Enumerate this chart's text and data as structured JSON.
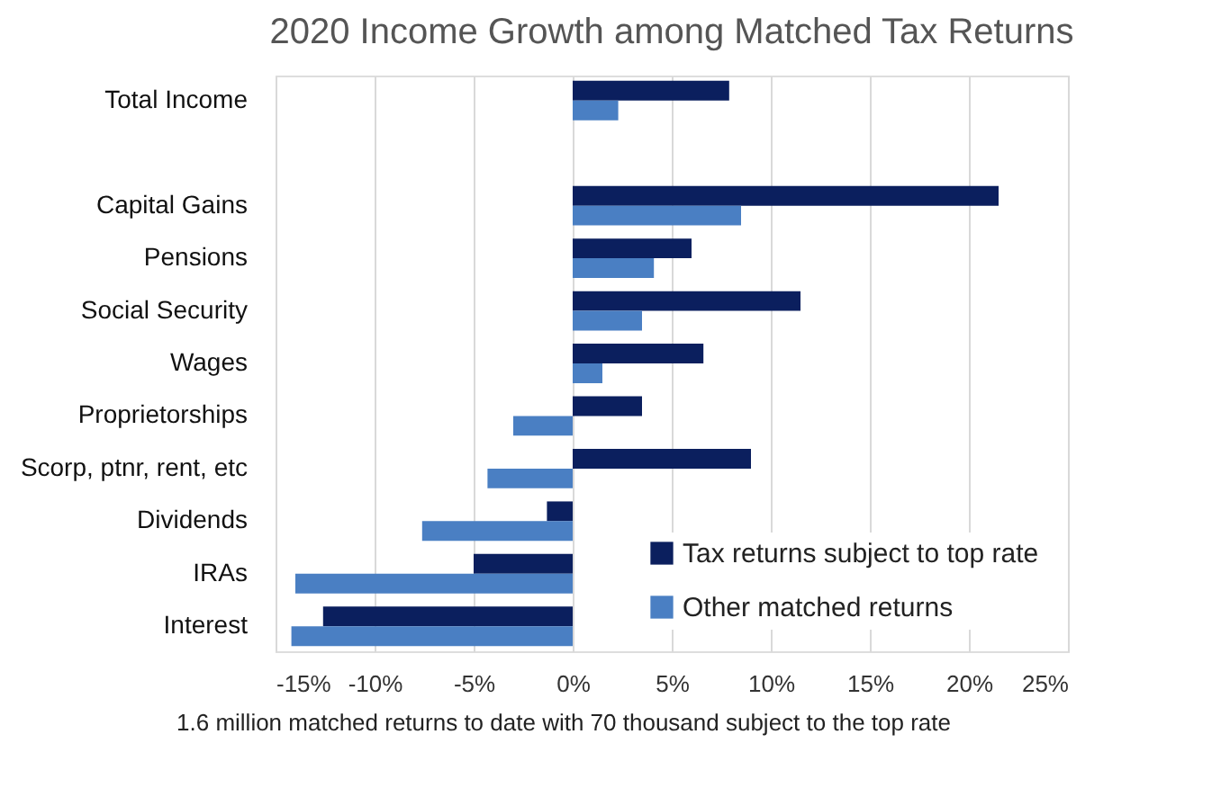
{
  "chart_data": {
    "type": "bar",
    "orientation": "horizontal",
    "title": "2020 Income Growth among Matched Tax Returns",
    "categories": [
      "Total Income",
      null,
      "Capital Gains",
      "Pensions",
      "Social Security",
      "Wages",
      "Proprietorships",
      "Scorp, ptnr, rent, etc",
      "Dividends",
      "IRAs",
      "Interest"
    ],
    "series": [
      {
        "name": "Tax returns subject to top rate",
        "color": "#0b1f5e",
        "values": [
          7.9,
          null,
          21.5,
          6.0,
          11.5,
          6.6,
          3.5,
          9.0,
          -1.3,
          -5.0,
          -12.6
        ]
      },
      {
        "name": "Other matched returns",
        "color": "#4a7fc3",
        "values": [
          2.3,
          null,
          8.5,
          4.1,
          3.5,
          1.5,
          -3.0,
          -4.3,
          -7.6,
          -14.0,
          -14.2
        ]
      }
    ],
    "xlim": [
      -15,
      25
    ],
    "xticks": [
      {
        "value": -15,
        "label": "-15%"
      },
      {
        "value": -10,
        "label": "-10%"
      },
      {
        "value": -5,
        "label": "-5%"
      },
      {
        "value": 0,
        "label": "0%"
      },
      {
        "value": 5,
        "label": "5%"
      },
      {
        "value": 10,
        "label": "10%"
      },
      {
        "value": 15,
        "label": "15%"
      },
      {
        "value": 20,
        "label": "20%"
      },
      {
        "value": 25,
        "label": "25%"
      }
    ],
    "grid": "x",
    "legend": "bottom right",
    "annotations": [
      "1.6 million matched returns to date with 70 thousand subject to the top rate"
    ]
  }
}
